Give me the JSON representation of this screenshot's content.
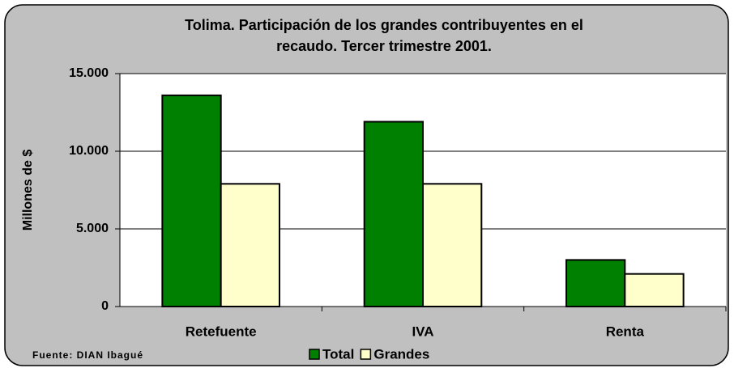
{
  "chart_data": {
    "type": "bar",
    "title": "Tolima. Participación de los grandes contribuyentes en el recaudo. Tercer trimestre 2001.",
    "y_label": "Millones de $",
    "note": "Fuente: DIAN Ibagué",
    "categories": [
      "Retefuente",
      "IVA",
      "Renta"
    ],
    "series": [
      {
        "name": "Total",
        "color": "#008000",
        "values": [
          13600,
          11900,
          3000
        ]
      },
      {
        "name": "Grandes",
        "color": "#ffffcc",
        "values": [
          7900,
          7900,
          2100
        ]
      }
    ],
    "ylim": [
      0,
      15000
    ],
    "yticks": [
      0,
      {
        "value": 5000,
        "label": "5.000"
      },
      {
        "value": 10000,
        "label": "10.000"
      },
      {
        "value": 15000,
        "label": "15.000"
      }
    ],
    "grid": true
  }
}
